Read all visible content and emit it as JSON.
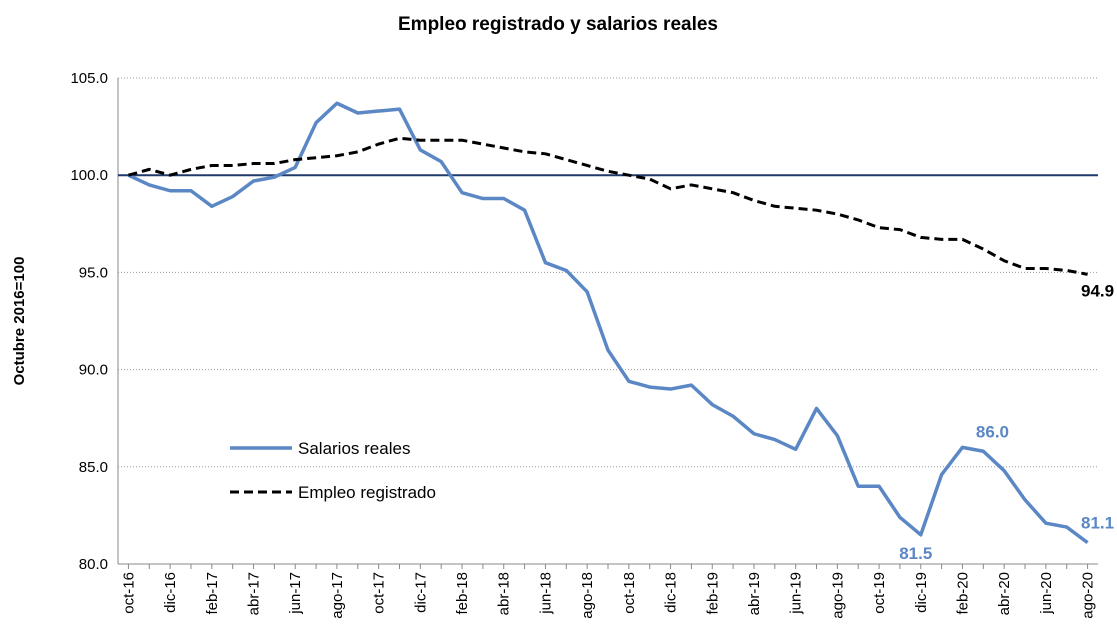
{
  "chart_data": {
    "type": "line",
    "title": "Empleo registrado y salarios reales",
    "y_label": "Octubre 2016=100",
    "categories": [
      "oct-16",
      null,
      "dic-16",
      null,
      "feb-17",
      null,
      "abr-17",
      null,
      "jun-17",
      null,
      "ago-17",
      null,
      "oct-17",
      null,
      "dic-17",
      null,
      "feb-18",
      null,
      "abr-18",
      null,
      "jun-18",
      null,
      "ago-18",
      null,
      "oct-18",
      null,
      "dic-18",
      null,
      "feb-19",
      null,
      "abr-19",
      null,
      "jun-19",
      null,
      "ago-19",
      null,
      "oct-19",
      null,
      "dic-19",
      null,
      "feb-20",
      null,
      "abr-20",
      null,
      "jun-20",
      null,
      "ago-20"
    ],
    "series": [
      {
        "name": "Salarios reales",
        "color": "#5b87c5",
        "dash": false,
        "values": [
          100.0,
          99.5,
          99.2,
          99.2,
          98.4,
          98.9,
          99.7,
          99.9,
          100.4,
          102.7,
          103.7,
          103.2,
          103.3,
          103.4,
          101.3,
          100.7,
          99.1,
          98.8,
          98.8,
          98.2,
          95.5,
          95.1,
          94.0,
          91.0,
          89.4,
          89.1,
          89.0,
          89.2,
          88.2,
          87.6,
          86.7,
          86.4,
          85.9,
          88.0,
          86.6,
          84.0,
          84.0,
          82.4,
          81.5,
          84.6,
          86.0,
          85.8,
          84.8,
          83.3,
          82.1,
          81.9,
          81.1
        ],
        "value_labels": [
          null,
          null,
          null,
          null,
          null,
          null,
          null,
          null,
          null,
          null,
          null,
          null,
          null,
          null,
          null,
          null,
          null,
          null,
          null,
          null,
          null,
          null,
          null,
          null,
          null,
          null,
          null,
          null,
          null,
          null,
          null,
          null,
          null,
          null,
          null,
          null,
          null,
          null,
          "81.5",
          null,
          "86.0",
          null,
          null,
          null,
          null,
          null,
          "81.1"
        ]
      },
      {
        "name": "Empleo registrado",
        "color": "#000000",
        "dash": true,
        "values": [
          100.0,
          100.3,
          100.0,
          100.3,
          100.5,
          100.5,
          100.6,
          100.6,
          100.8,
          100.9,
          101.0,
          101.2,
          101.6,
          101.9,
          101.8,
          101.8,
          101.8,
          101.6,
          101.4,
          101.2,
          101.1,
          100.8,
          100.5,
          100.2,
          100.0,
          99.8,
          99.3,
          99.5,
          99.3,
          99.1,
          98.7,
          98.4,
          98.3,
          98.2,
          98.0,
          97.7,
          97.3,
          97.2,
          96.8,
          96.7,
          96.7,
          96.2,
          95.6,
          95.2,
          95.2,
          95.1,
          94.9
        ],
        "value_labels": [
          null,
          null,
          null,
          null,
          null,
          null,
          null,
          null,
          null,
          null,
          null,
          null,
          null,
          null,
          null,
          null,
          null,
          null,
          null,
          null,
          null,
          null,
          null,
          null,
          null,
          null,
          null,
          null,
          null,
          null,
          null,
          null,
          null,
          null,
          null,
          null,
          null,
          null,
          null,
          null,
          null,
          null,
          null,
          null,
          null,
          null,
          "94.9"
        ]
      }
    ],
    "reference_line": {
      "value": 100,
      "color": "#1f3a6b"
    },
    "ylim": [
      80,
      105
    ],
    "yticks": [
      {
        "value": 80,
        "label": "80.0"
      },
      {
        "value": 85,
        "label": "85.0"
      },
      {
        "value": 90,
        "label": "90.0"
      },
      {
        "value": 95,
        "label": "95.0"
      },
      {
        "value": 100,
        "label": "100.0"
      },
      {
        "value": 105,
        "label": "105.0"
      }
    ],
    "grid": true,
    "legend": "lower left"
  }
}
